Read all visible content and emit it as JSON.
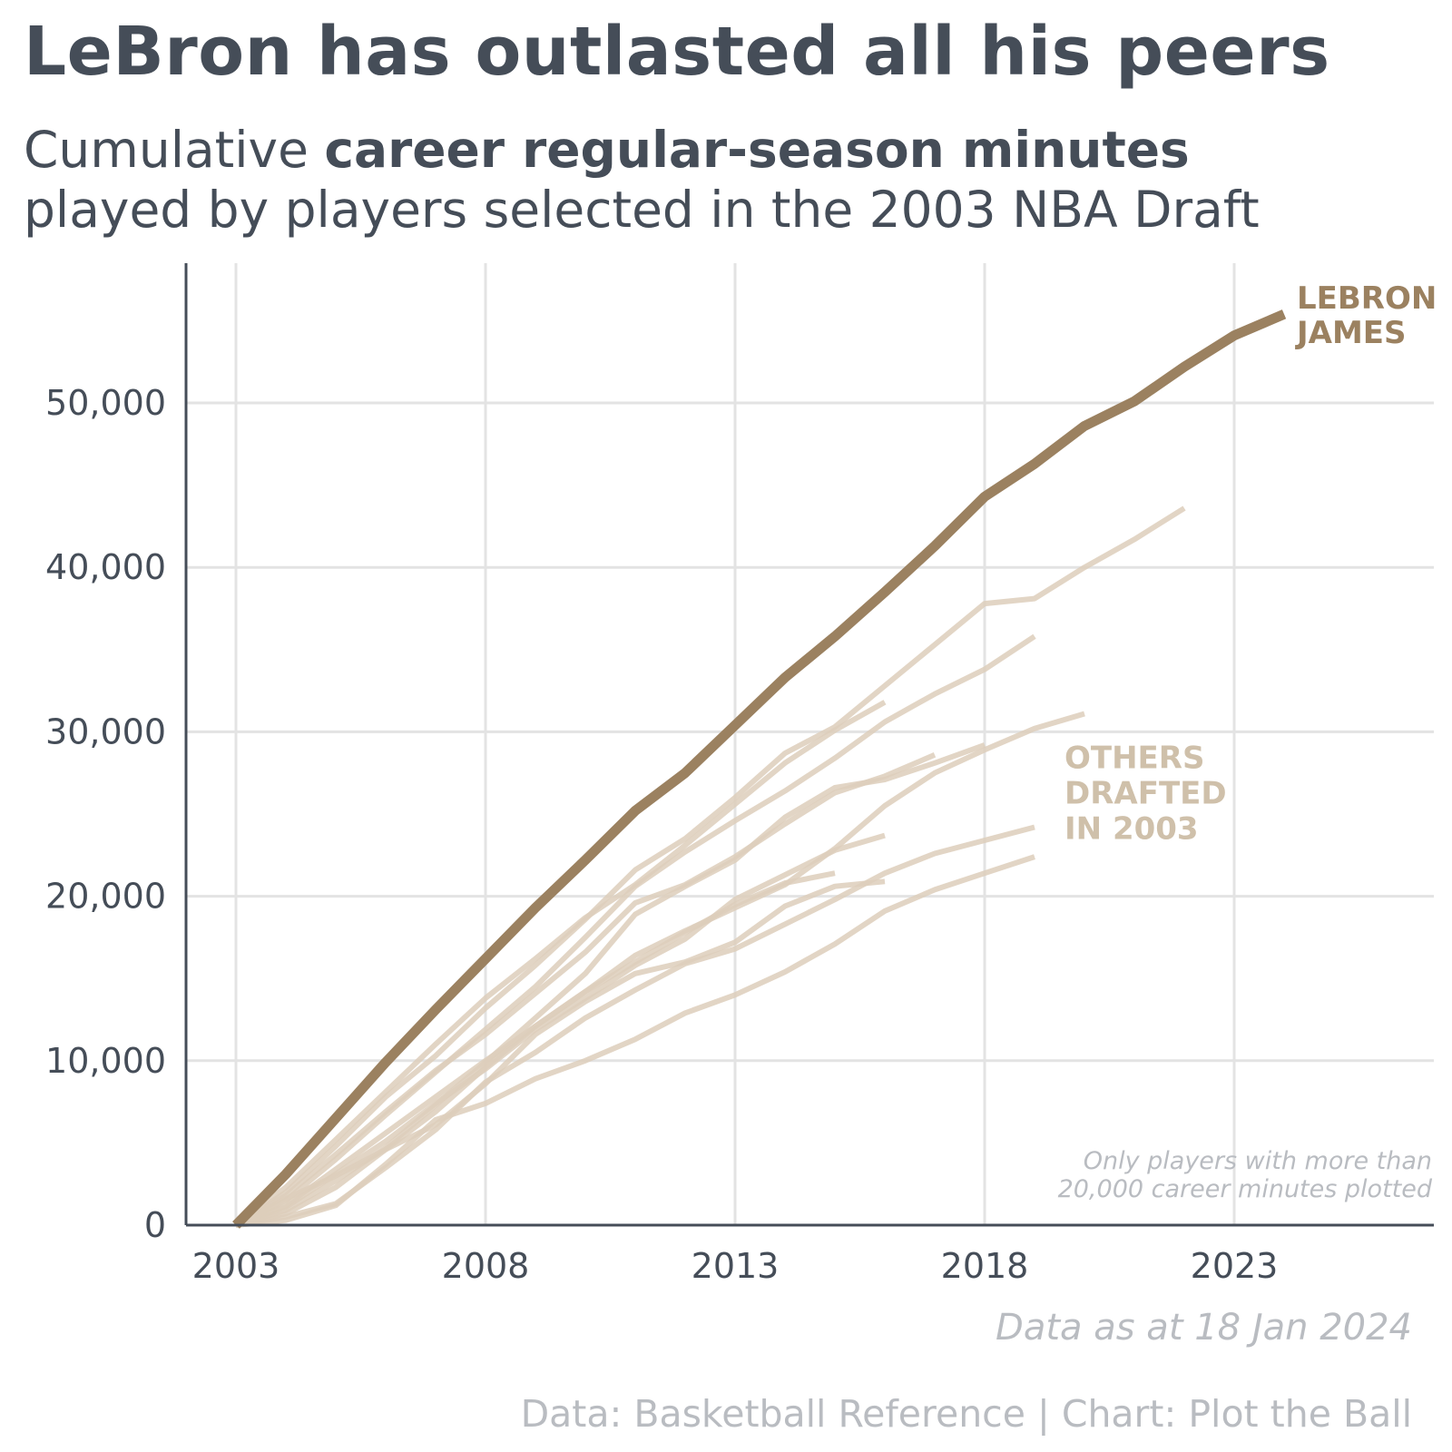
{
  "title": "LeBron has outlasted all his peers",
  "subtitle": {
    "line1_plain": "Cumulative ",
    "line1_bold": "career regular-season minutes",
    "line2": "played by players selected in the 2003 NBA Draft"
  },
  "data_as_at": "Data as at 18 Jan 2024",
  "source": "Data: Basketball Reference | Chart: Plot the Ball",
  "colors": {
    "lebron": "#9b8160",
    "others": "#ddcebb",
    "others_label": "#cfc0aa",
    "text": "#454d58",
    "muted": "#b9bcc1",
    "grid": "#e3e3e3"
  },
  "chart_data": {
    "type": "line",
    "title": "LeBron has outlasted all his peers",
    "xlabel": "",
    "ylabel": "",
    "xlim": [
      2002,
      2027
    ],
    "ylim": [
      0,
      58500
    ],
    "x_ticks": [
      2003,
      2008,
      2013,
      2018,
      2023
    ],
    "x_tick_labels": [
      "2003",
      "2008",
      "2013",
      "2018",
      "2023"
    ],
    "y_ticks": [
      0,
      10000,
      20000,
      30000,
      40000,
      50000
    ],
    "y_tick_labels": [
      "0",
      "10,000",
      "20,000",
      "30,000",
      "40,000",
      "50,000"
    ],
    "grid": true,
    "annotations": {
      "lebron_label": [
        "LEBRON",
        "JAMES"
      ],
      "others_label": [
        "OTHERS",
        "DRAFTED",
        "IN 2003"
      ],
      "note": [
        "Only players with more than",
        "20,000 career minutes plotted"
      ]
    },
    "series": [
      {
        "name": "LeBron James",
        "highlight": true,
        "x": [
          2003,
          2004,
          2005,
          2006,
          2007,
          2008,
          2009,
          2010,
          2011,
          2012,
          2013,
          2014,
          2015,
          2016,
          2017,
          2018,
          2019,
          2020,
          2021,
          2022,
          2023,
          2024
        ],
        "y": [
          0,
          3100,
          6500,
          9900,
          13100,
          16200,
          19300,
          22200,
          25200,
          27500,
          30400,
          33300,
          35800,
          38500,
          41300,
          44300,
          46300,
          48600,
          50100,
          52200,
          54100,
          55400
        ]
      },
      {
        "x": [
          2003,
          2004,
          2005,
          2006,
          2007,
          2008,
          2009,
          2010,
          2011,
          2012,
          2013,
          2014,
          2015,
          2016,
          2017,
          2018,
          2019,
          2020,
          2021,
          2022
        ],
        "y": [
          0,
          2000,
          4800,
          7800,
          10300,
          13200,
          15800,
          18600,
          21600,
          23500,
          26000,
          28700,
          30300,
          32800,
          35300,
          37800,
          38100,
          40000,
          41700,
          43600
        ]
      },
      {
        "x": [
          2003,
          2004,
          2005,
          2006,
          2007,
          2008,
          2009,
          2010,
          2011,
          2012,
          2013,
          2014,
          2015,
          2016,
          2017,
          2018,
          2019
        ],
        "y": [
          0,
          1500,
          4000,
          6700,
          9300,
          11900,
          14500,
          17500,
          20600,
          22700,
          24600,
          26400,
          28400,
          30600,
          32300,
          33800,
          35800
        ]
      },
      {
        "x": [
          2003,
          2004,
          2005,
          2006,
          2007,
          2008,
          2009,
          2010,
          2011,
          2012,
          2013,
          2014,
          2015,
          2016
        ],
        "y": [
          0,
          2300,
          5200,
          8100,
          11000,
          13800,
          16200,
          18700,
          20700,
          23100,
          25600,
          28100,
          30100,
          31800
        ]
      },
      {
        "x": [
          2003,
          2004,
          2005,
          2006,
          2007,
          2008,
          2009,
          2010,
          2011,
          2012,
          2013,
          2014,
          2015,
          2016,
          2017,
          2018,
          2019,
          2020
        ],
        "y": [
          0,
          1200,
          3400,
          5600,
          7800,
          10000,
          12100,
          14200,
          16400,
          17900,
          19300,
          20700,
          22900,
          25500,
          27500,
          28900,
          30200,
          31100
        ]
      },
      {
        "x": [
          2003,
          2004,
          2005,
          2006,
          2007,
          2008,
          2009,
          2010,
          2011,
          2012,
          2013,
          2014,
          2015,
          2016,
          2017
        ],
        "y": [
          0,
          1800,
          4300,
          6900,
          9400,
          11600,
          14100,
          16600,
          19600,
          20700,
          22400,
          24400,
          26300,
          27300,
          28600
        ]
      },
      {
        "x": [
          2003,
          2004,
          2005,
          2006,
          2007,
          2008,
          2009,
          2010,
          2011,
          2012,
          2013,
          2014,
          2015,
          2016,
          2017,
          2018
        ],
        "y": [
          0,
          900,
          2700,
          4700,
          7300,
          9900,
          12600,
          15300,
          18900,
          20600,
          22200,
          24800,
          26600,
          27100,
          28100,
          29200
        ]
      },
      {
        "x": [
          2003,
          2004,
          2005,
          2006,
          2007,
          2008,
          2009,
          2010,
          2011,
          2012,
          2013,
          2014,
          2015,
          2016
        ],
        "y": [
          0,
          1100,
          3100,
          5100,
          7400,
          9500,
          11900,
          13800,
          15800,
          17400,
          19800,
          21300,
          22800,
          23700
        ]
      },
      {
        "x": [
          2003,
          2004,
          2005,
          2006,
          2007,
          2008,
          2009,
          2010,
          2011,
          2012,
          2013,
          2014,
          2015
        ],
        "y": [
          0,
          700,
          2300,
          4600,
          6900,
          9600,
          12100,
          14200,
          16000,
          17800,
          19500,
          20800,
          21400
        ]
      },
      {
        "x": [
          2003,
          2004,
          2005,
          2006,
          2007,
          2008,
          2009,
          2010,
          2011,
          2012,
          2013,
          2014,
          2015,
          2016
        ],
        "y": [
          0,
          1600,
          3000,
          4600,
          6100,
          8600,
          11600,
          13600,
          15300,
          16000,
          17200,
          19400,
          20600,
          20900
        ]
      },
      {
        "x": [
          2003,
          2004,
          2005,
          2006,
          2007,
          2008,
          2009,
          2010,
          2011,
          2012,
          2013,
          2014,
          2015,
          2016,
          2017,
          2018,
          2019
        ],
        "y": [
          0,
          500,
          1300,
          3500,
          5800,
          8700,
          10500,
          12600,
          14300,
          15900,
          16800,
          18300,
          19800,
          21400,
          22600,
          23400,
          24200
        ]
      },
      {
        "x": [
          2003,
          2004,
          2005,
          2006,
          2007,
          2008,
          2009,
          2010,
          2011,
          2012,
          2013,
          2014,
          2015,
          2016,
          2017,
          2018,
          2019
        ],
        "y": [
          0,
          300,
          1200,
          3700,
          6400,
          7400,
          8900,
          10000,
          11300,
          12900,
          14000,
          15400,
          17100,
          19100,
          20400,
          21400,
          22400
        ]
      }
    ]
  }
}
